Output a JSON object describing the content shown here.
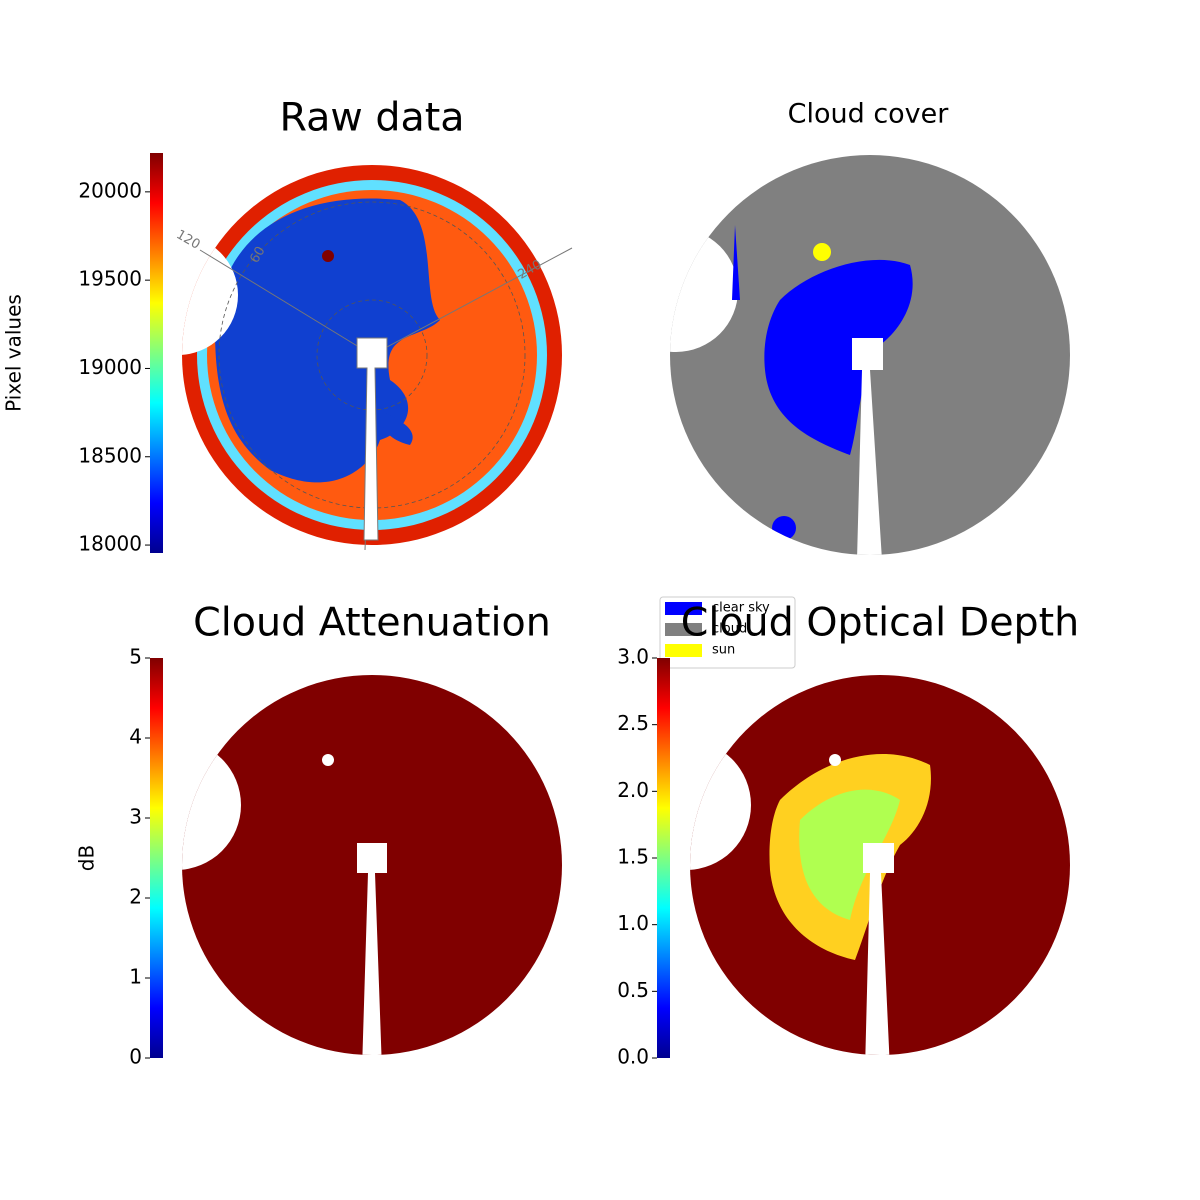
{
  "chart_data": [
    {
      "type": "image",
      "title": "Raw data",
      "colorbar_label": "Pixel values",
      "colormap": "jet",
      "ylim": [
        17955,
        20220
      ],
      "yticks": [
        18000,
        18500,
        19000,
        19500,
        20000
      ],
      "annotations": [
        "120",
        "60",
        "240"
      ]
    },
    {
      "type": "image",
      "title": "Cloud cover",
      "legend": [
        {
          "name": "clear sky",
          "color": "#0000ff"
        },
        {
          "name": "cloud",
          "color": "#808080"
        },
        {
          "name": "sun",
          "color": "#ffff00"
        }
      ]
    },
    {
      "type": "image",
      "title": "Cloud Attenuation",
      "colorbar_label": "dB",
      "colormap": "jet",
      "ylim": [
        0,
        5
      ],
      "yticks": [
        0,
        1,
        2,
        3,
        4,
        5
      ]
    },
    {
      "type": "image",
      "title": "Cloud Optical Depth",
      "colormap": "jet",
      "ylim": [
        0,
        3
      ],
      "yticks": [
        {
          "value": 0,
          "label": "0.0"
        },
        {
          "value": 0.5,
          "label": "0.5"
        },
        {
          "value": 1,
          "label": "1.0"
        },
        {
          "value": 1.5,
          "label": "1.5"
        },
        {
          "value": 2,
          "label": "2.0"
        },
        {
          "value": 2.5,
          "label": "2.5"
        },
        {
          "value": 3,
          "label": "3.0"
        }
      ]
    }
  ]
}
